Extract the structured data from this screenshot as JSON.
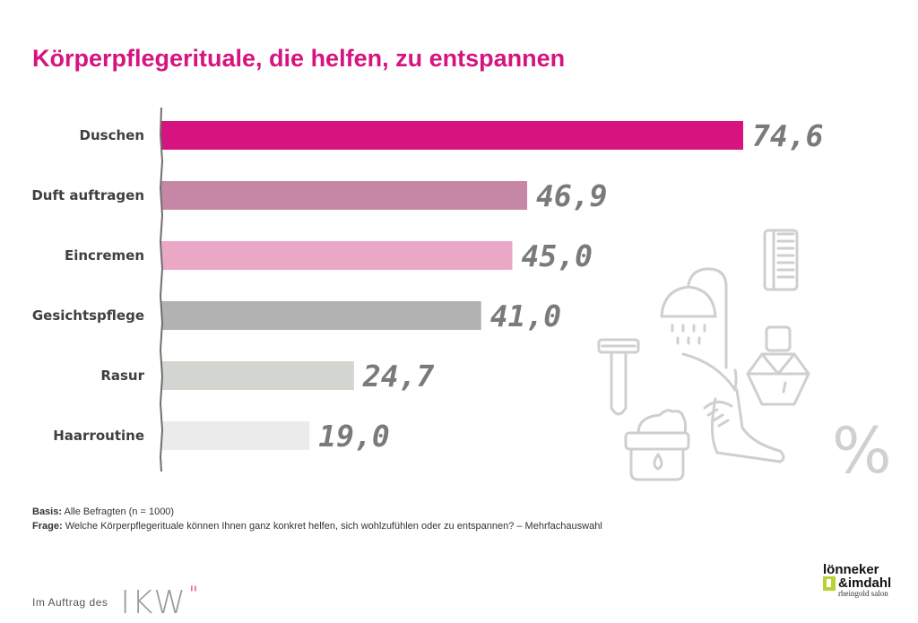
{
  "title": "Körperpflegerituale, die helfen, zu entspannen",
  "chart_data": {
    "type": "bar",
    "orientation": "horizontal",
    "categories": [
      "Duschen",
      "Duft auftragen",
      "Eincremen",
      "Gesichtspflege",
      "Rasur",
      "Haarroutine"
    ],
    "values": [
      74.6,
      46.9,
      45.0,
      41.0,
      24.7,
      19.0
    ],
    "value_labels": [
      "74,6",
      "46,9",
      "45,0",
      "41,0",
      "24,7",
      "19,0"
    ],
    "colors": [
      "#d6137f",
      "#c686a5",
      "#eba7c6",
      "#b2b2b2",
      "#d3d5d0",
      "#ebebeb"
    ],
    "xlim": [
      0,
      100
    ],
    "unit": "%"
  },
  "unit_symbol": "%",
  "notes": {
    "basis_label": "Basis:",
    "basis_text": "Alle Befragten (n = 1000)",
    "frage_label": "Frage:",
    "frage_text": "Welche Körperpflegerituale können Ihnen ganz konkret helfen, sich wohlzufühlen oder zu entspannen? – Mehrfachauswahl"
  },
  "footer": {
    "auftrag": "Im Auftrag des",
    "ikw": "IKW",
    "ikw_quote": "\"",
    "logo_line1": "lönneker",
    "logo_line2": "&imdahl",
    "logo_line3": "rheingold salon"
  },
  "icons": [
    "comb-icon",
    "shower-icon",
    "razor-icon",
    "perfume-bottle-icon",
    "foot-cream-icon",
    "cream-jar-icon"
  ]
}
